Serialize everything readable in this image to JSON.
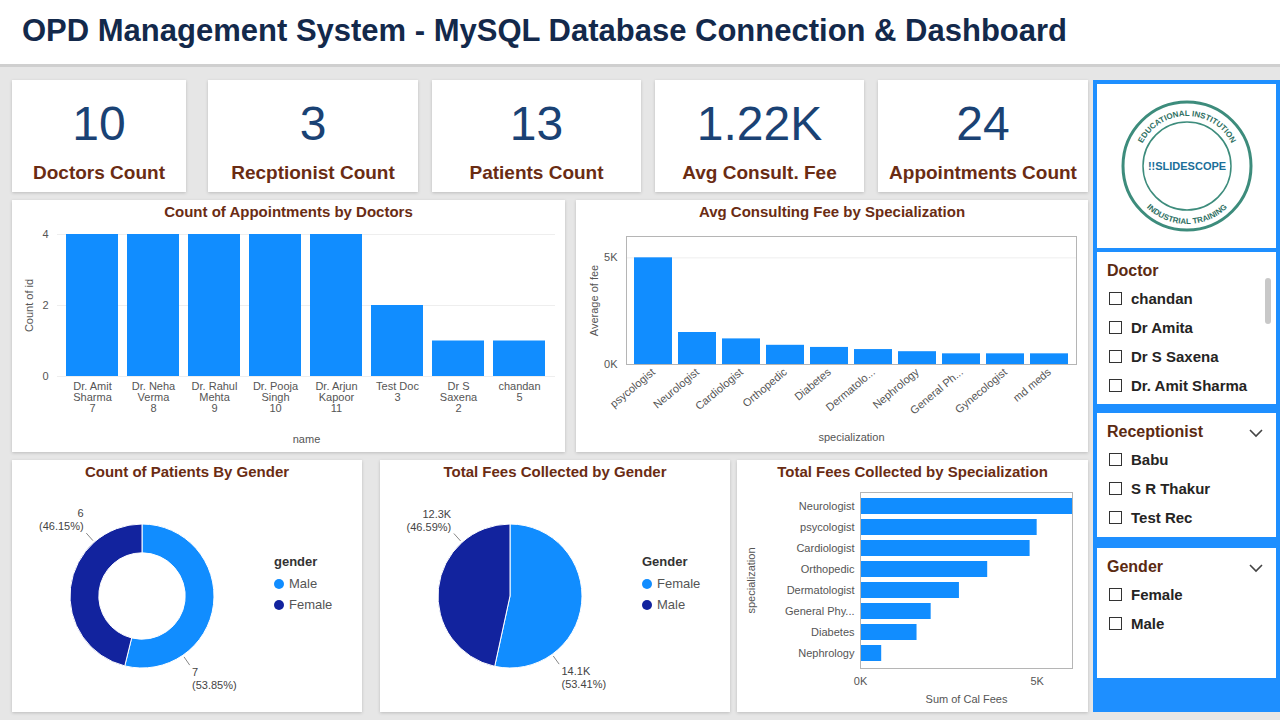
{
  "header": {
    "title": "OPD Management System - MySQL Database Connection & Dashboard"
  },
  "cards": [
    {
      "label": "Doctors Count",
      "value": 10
    },
    {
      "label": "Recptionist Count",
      "value": 3
    },
    {
      "label": "Patients Count",
      "value": 13
    },
    {
      "label": "Avg Consult. Fee",
      "value": 1220,
      "value_label": "1.22K"
    },
    {
      "label": "Appointments Count",
      "value": 24
    }
  ],
  "chart_data": [
    {
      "type": "bar",
      "title": "Count of Appointments by Doctors",
      "x_label": "name",
      "y_label": "Count of id",
      "categories": [
        "Dr. Amit Sharma",
        "Dr. Neha Verma",
        "Dr. Rahul Mehta",
        "Dr. Pooja Singh",
        "Dr. Arjun Kapoor",
        "Test Doc",
        "Dr S Saxena",
        "chandan"
      ],
      "category_ids": [
        7,
        8,
        9,
        10,
        11,
        3,
        2,
        5
      ],
      "values": [
        4,
        4,
        4,
        4,
        4,
        2,
        1,
        1
      ],
      "color": "#118dff",
      "ylim": [
        0,
        4
      ],
      "yticks": [
        0,
        2,
        4
      ],
      "grid": true
    },
    {
      "type": "bar",
      "title": "Avg Consulting Fee by Specialization",
      "x_label": "specialization",
      "y_label": "Average of fee",
      "categories": [
        "psycologist",
        "Neurologist",
        "Cardiologist",
        "Orthopedic",
        "Diabetes",
        "Dermatolo...",
        "Nephrology",
        "General Ph...",
        "Gynecologist",
        "md meds"
      ],
      "values": [
        5000,
        1500,
        1200,
        900,
        800,
        700,
        600,
        500,
        500,
        500
      ],
      "color": "#118dff",
      "ylim": [
        0,
        6000
      ],
      "yticks": [
        {
          "value": 0,
          "label": "0K"
        },
        {
          "value": 5000,
          "label": "5K"
        }
      ],
      "grid": true
    },
    {
      "type": "donut",
      "title": "Count of Patients By Gender",
      "legend_title": "gender",
      "categories": [
        "Male",
        "Female"
      ],
      "values": [
        7,
        6
      ],
      "value_labels": [
        "7 (53.85%)",
        "6 (46.15%)"
      ],
      "colors": [
        "#118dff",
        "#12239e"
      ],
      "data_labels": true,
      "legend": "right"
    },
    {
      "type": "pie",
      "title": "Total Fees Collected by Gender",
      "legend_title": "Gender",
      "categories": [
        "Female",
        "Male"
      ],
      "values": [
        14100,
        12300
      ],
      "value_labels": [
        "14.1K (53.41%)",
        "12.3K (46.59%)"
      ],
      "colors": [
        "#118dff",
        "#12239e"
      ],
      "data_labels": true,
      "legend": "right"
    },
    {
      "type": "bar",
      "orientation": "horizontal",
      "title": "Total Fees Collected by Specialization",
      "x_label": "Sum of Cal Fees",
      "y_label": "specialization",
      "categories": [
        "Neurologist",
        "psycologist",
        "Cardiologist",
        "Orthopedic",
        "Dermatologist",
        "General Phy...",
        "Diabetes",
        "Nephrology"
      ],
      "values": [
        6000,
        5000,
        4800,
        3600,
        2800,
        2000,
        1600,
        600
      ],
      "color": "#118dff",
      "xlim": [
        0,
        6000
      ],
      "xticks": [
        {
          "value": 0,
          "label": "0K"
        },
        {
          "value": 5000,
          "label": "5K"
        }
      ],
      "grid": false
    }
  ],
  "logo": {
    "top_text": "EDUCATIONAL INSTITUTION",
    "name": "!!SLIDESCOPE",
    "bottom_text": "INDUSTRIAL TRAINING"
  },
  "slicers": [
    {
      "title": "Doctor",
      "items": [
        "chandan",
        "Dr Amita",
        "Dr S Saxena",
        "Dr. Amit Sharma"
      ]
    },
    {
      "title": "Receptionist",
      "items": [
        "Babu",
        "S R Thakur",
        "Test Rec"
      ]
    },
    {
      "title": "Gender",
      "items": [
        "Female",
        "Male"
      ]
    }
  ]
}
